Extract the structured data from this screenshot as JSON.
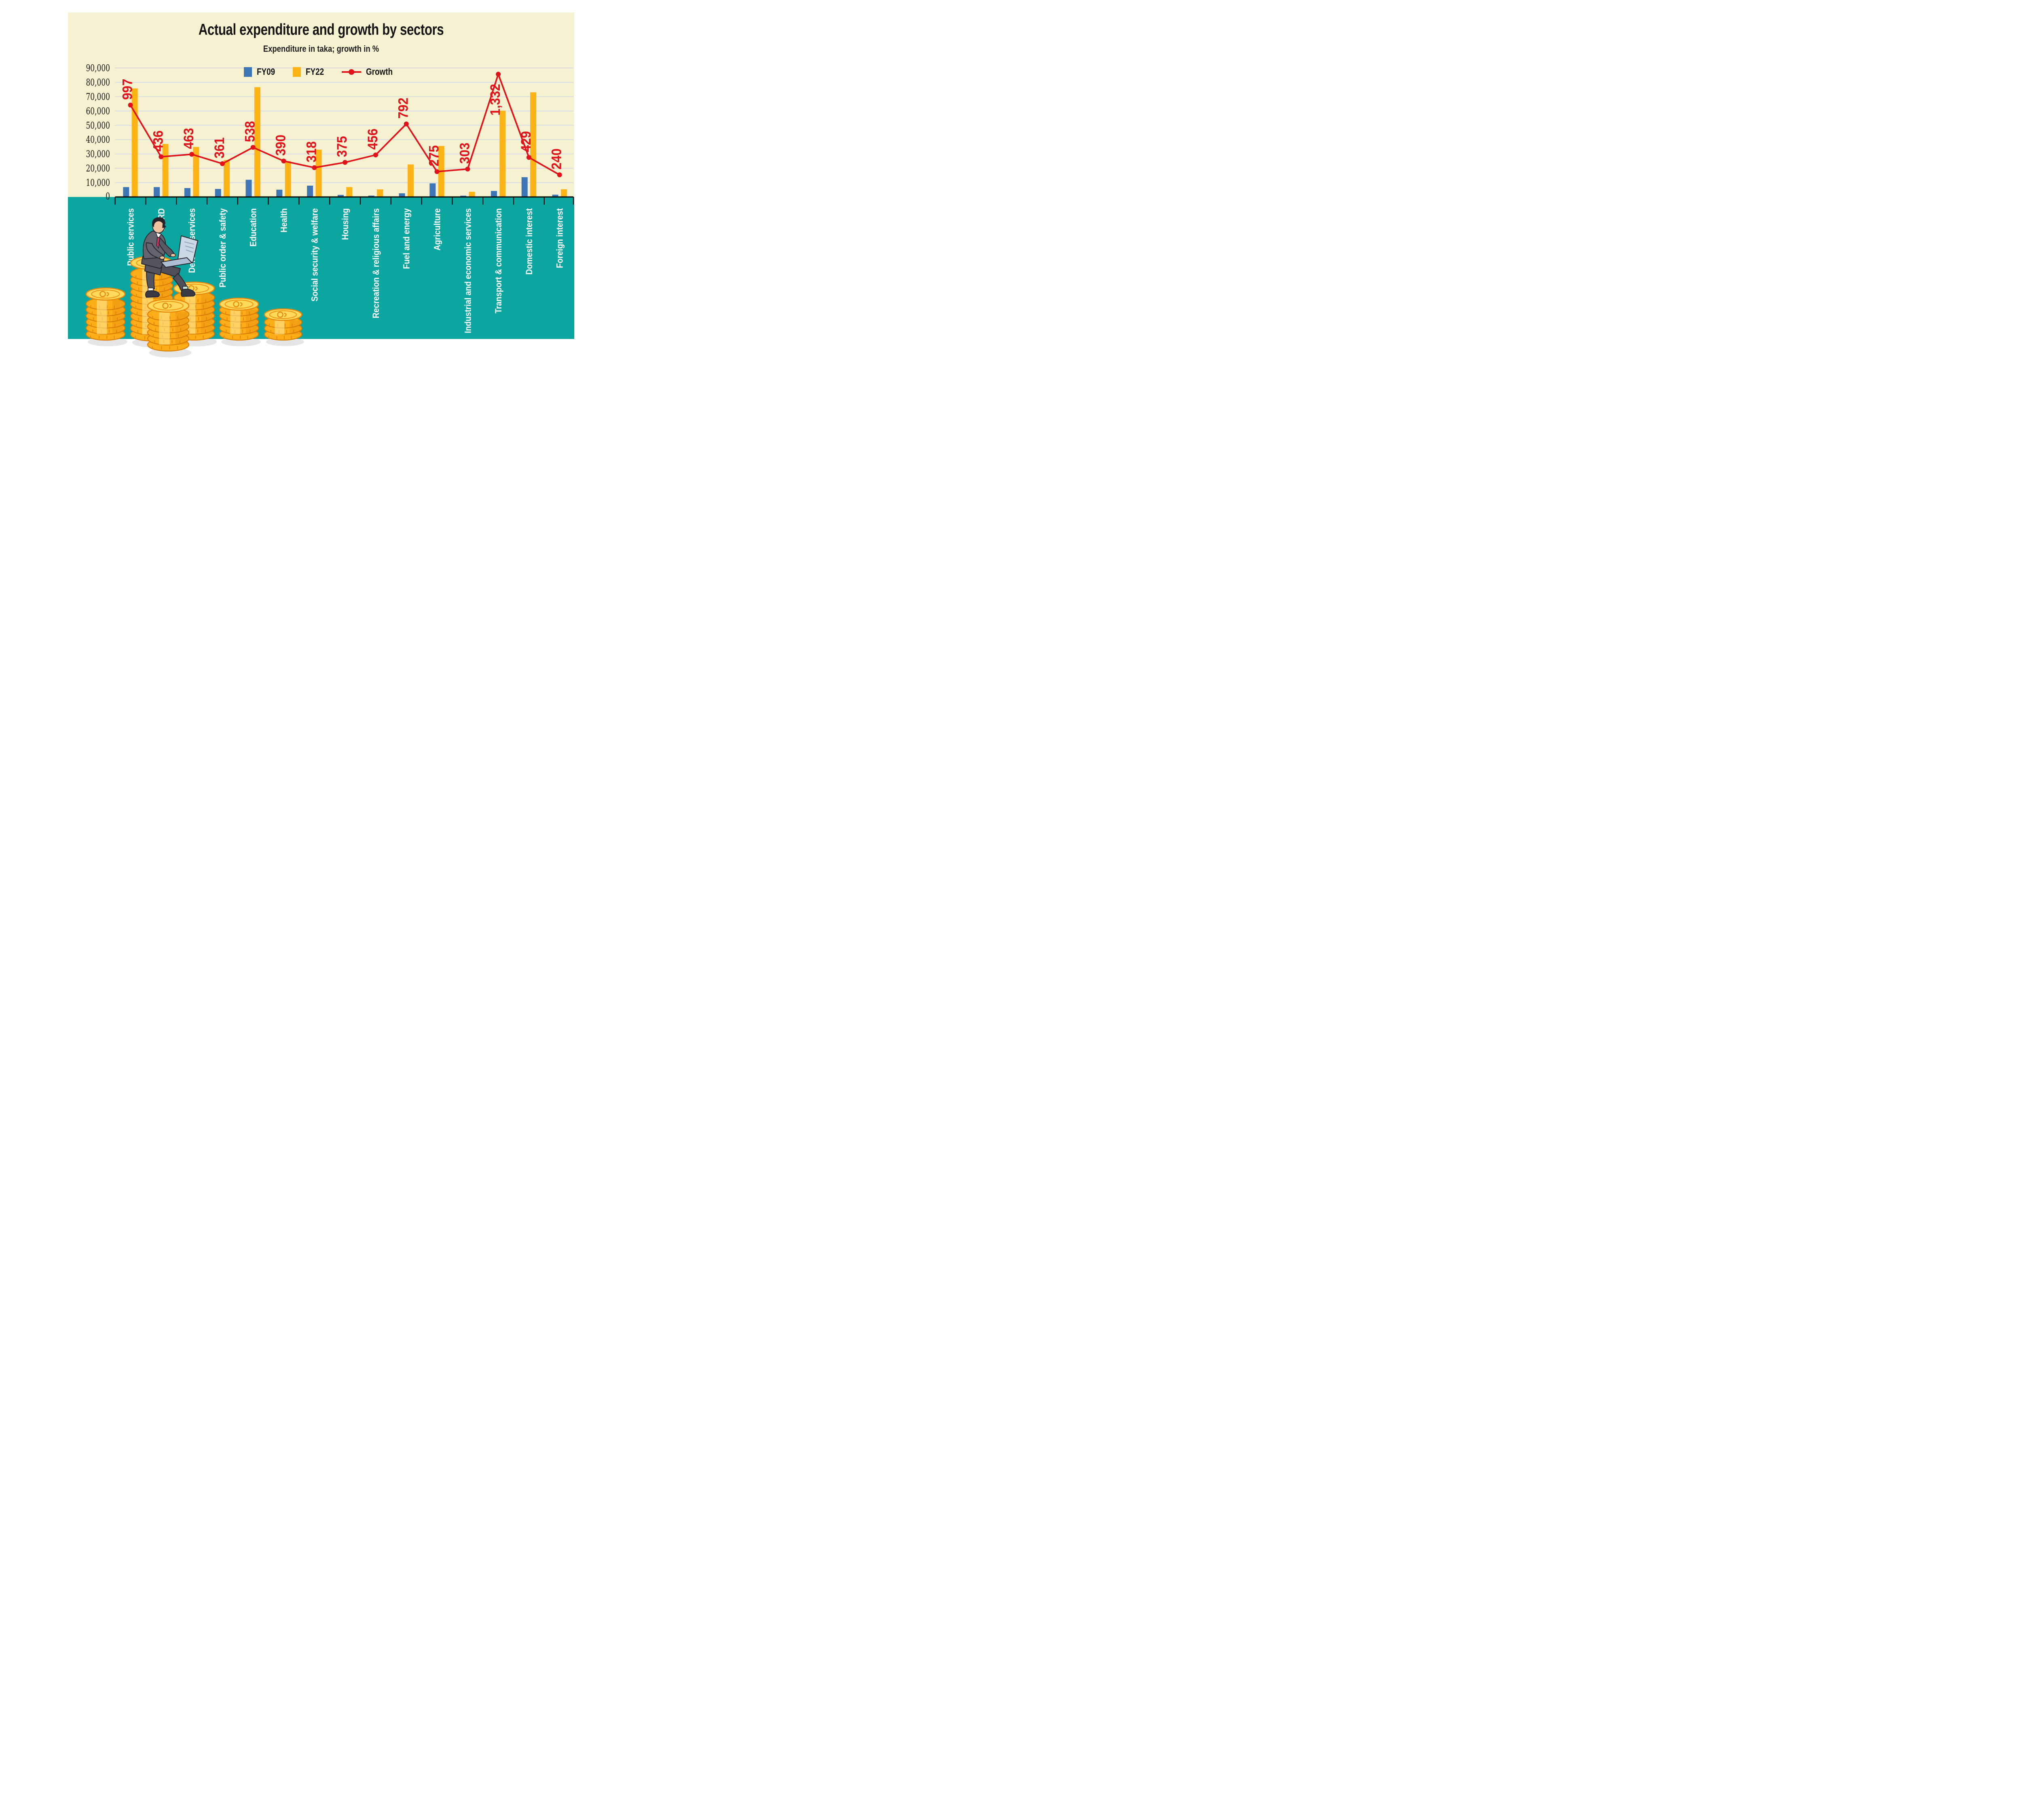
{
  "title": "Actual expenditure and growth by sectors",
  "subtitle": "Expenditure in taka; growth in %",
  "legend": {
    "fy09": "FY09",
    "fy22": "FY22",
    "growth": "Growth"
  },
  "colors": {
    "panel_bg": "#F6F2D1",
    "teal_band": "#0CA6A0",
    "fy09_bar": "#3E76B5",
    "fy22_bar": "#FBB316",
    "growth_line": "#E2121B",
    "gridline": "#D8DBE2",
    "axis": "#0b0b0b",
    "category_label": "#FFFFFF",
    "coin_gold": "#FBAE17",
    "coin_face": "#FFD95C"
  },
  "chart_data": {
    "type": "bar",
    "subtype": "grouped bars with overlaid line (combo)",
    "title": "Actual expenditure and growth by sectors",
    "subtitle": "Expenditure in taka; growth in %",
    "categories": [
      "Public services",
      "LGRD",
      "Defence services",
      "Public order & safety",
      "Education",
      "Health",
      "Social security & welfare",
      "Housing",
      "Recreation & religious affairs",
      "Fuel and energy",
      "Agriculture",
      "Industrial and economic services",
      "Transport & communication",
      "Domestic interest",
      "Foreign interest"
    ],
    "series": [
      {
        "name": "FY09",
        "type": "bar",
        "color": "#3E76B5",
        "values": [
          6900,
          6900,
          6200,
          5600,
          12000,
          5100,
          7900,
          1450,
          950,
          2550,
          9500,
          900,
          4200,
          13800,
          1600
        ]
      },
      {
        "name": "FY22",
        "type": "bar",
        "color": "#FBB316",
        "values": [
          75700,
          37000,
          34900,
          25800,
          76600,
          25000,
          33000,
          6900,
          5300,
          22700,
          35600,
          3600,
          60200,
          73000,
          5400
        ]
      },
      {
        "name": "Growth",
        "type": "line",
        "color": "#E2121B",
        "values": [
          997,
          436,
          463,
          361,
          538,
          390,
          318,
          375,
          456,
          792,
          275,
          303,
          1332,
          429,
          240
        ],
        "labels": [
          "997",
          "436",
          "463",
          "361",
          "538",
          "390",
          "318",
          "375",
          "456",
          "792",
          "275",
          "303",
          "1,332",
          "429",
          "240"
        ]
      }
    ],
    "y_ticks": [
      "0",
      "10,000",
      "20,000",
      "30,000",
      "40,000",
      "50,000",
      "60,000",
      "70,000",
      "80,000",
      "90,000"
    ],
    "ylim": [
      0,
      90000
    ],
    "growth_axis_hidden_max": 1400,
    "grid": "horizontal gridlines every 10,000",
    "legend_position": "top center inside plot",
    "xlabel": "",
    "ylabel": ""
  },
  "illustration": {
    "description": "businessman with laptop sitting on stacks of gold coins",
    "coin_stack_count": 6
  }
}
